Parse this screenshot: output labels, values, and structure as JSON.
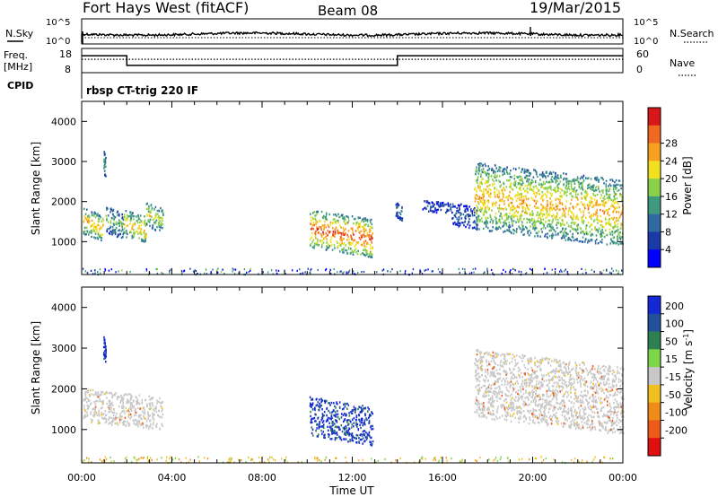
{
  "header": {
    "title": "Fort Hays West (fitACF)",
    "beam": "Beam 08",
    "date": "19/Mar/2015"
  },
  "summary_panel": {
    "left_label": "N.Sky",
    "right_label": "N.Search",
    "left_ticks": [
      "10^5",
      "10^0"
    ],
    "right_ticks": [
      "10^5",
      "10^0"
    ]
  },
  "freq_panel": {
    "left_label_line1": "Freq.",
    "left_label_line2": "[MHz]",
    "right_label": "Nave",
    "left_ticks": [
      "18",
      "8"
    ],
    "right_ticks": [
      "60",
      "0"
    ],
    "freq_steps": [
      {
        "t0": 0.0,
        "t1": 2.0,
        "value": 15
      },
      {
        "t0": 2.0,
        "t1": 14.0,
        "value": 11
      },
      {
        "t0": 14.0,
        "t1": 24.0,
        "value": 15
      }
    ],
    "nave_level": 33
  },
  "cpid": {
    "label": "CPID",
    "program": "rbsp CT-trig 220 IF"
  },
  "chart_data": [
    {
      "type": "heatmap",
      "name": "power",
      "ylabel": "Slant Range [km]",
      "xlabel": "Time UT",
      "x_ticks": [
        "00:00",
        "04:00",
        "08:00",
        "12:00",
        "16:00",
        "20:00",
        "00:00"
      ],
      "y_ticks": [
        "1000",
        "2000",
        "3000",
        "4000"
      ],
      "xlim": [
        0,
        24
      ],
      "ylim": [
        180,
        4500
      ],
      "colorbar": {
        "label": "Power [dB]",
        "ticks": [
          "4",
          "8",
          "12",
          "16",
          "20",
          "24",
          "28"
        ],
        "range": [
          0,
          30
        ],
        "colors": [
          "#0000ff",
          "#1a3aa8",
          "#2f6aa0",
          "#3f9a7e",
          "#8ad04a",
          "#f0e020",
          "#f7a020",
          "#ef6a20",
          "#d81818"
        ]
      },
      "regions": [
        {
          "t0": 0.05,
          "t1": 0.95,
          "r0": 1150,
          "r1": 1850,
          "peak": 22
        },
        {
          "t0": 0.95,
          "t1": 1.05,
          "r0": 2700,
          "r1": 3300,
          "peak": 12
        },
        {
          "t0": 1.05,
          "t1": 1.85,
          "r0": 1200,
          "r1": 1900,
          "peak": 14
        },
        {
          "t0": 1.85,
          "t1": 2.85,
          "r0": 1100,
          "r1": 1800,
          "peak": 22
        },
        {
          "t0": 2.85,
          "t1": 3.6,
          "r0": 1350,
          "r1": 2000,
          "peak": 18
        },
        {
          "t0": 10.1,
          "t1": 12.9,
          "r0": 800,
          "r1": 1800,
          "peak": 26
        },
        {
          "t0": 13.9,
          "t1": 14.2,
          "r0": 1600,
          "r1": 2000,
          "peak": 10
        },
        {
          "t0": 15.1,
          "t1": 16.4,
          "r0": 1750,
          "r1": 2050,
          "peak": 8
        },
        {
          "t0": 16.4,
          "t1": 17.5,
          "r0": 1400,
          "r1": 2000,
          "peak": 8
        },
        {
          "t0": 17.4,
          "t1": 24.0,
          "r0": 1200,
          "r1": 2950,
          "peak": 22
        }
      ]
    },
    {
      "type": "heatmap",
      "name": "velocity",
      "ylabel": "Slant Range [km]",
      "xlabel": "Time UT",
      "x_ticks": [
        "00:00",
        "04:00",
        "08:00",
        "12:00",
        "16:00",
        "20:00",
        "00:00"
      ],
      "y_ticks": [
        "1000",
        "2000",
        "3000",
        "4000"
      ],
      "xlim": [
        0,
        24
      ],
      "ylim": [
        180,
        4500
      ],
      "colorbar": {
        "label_main": "Velocity [m s",
        "label_sup": "-1",
        "label_end": "]",
        "ticks": [
          "200",
          "100",
          "50",
          "15",
          "-15",
          "-50",
          "-100",
          "-200"
        ],
        "colors": [
          "#1428d8",
          "#23509a",
          "#2f8050",
          "#7cd64a",
          "#c8c8c8",
          "#f0c020",
          "#f08a18",
          "#ef5a18",
          "#e01010"
        ]
      },
      "regions": [
        {
          "t0": 0.05,
          "t1": 3.6,
          "r0": 1150,
          "r1": 2000,
          "class": "ground"
        },
        {
          "t0": 0.95,
          "t1": 1.05,
          "r0": 2700,
          "r1": 3300,
          "class": "approach"
        },
        {
          "t0": 10.1,
          "t1": 12.9,
          "r0": 800,
          "r1": 1800,
          "class": "approach"
        },
        {
          "t0": 17.4,
          "t1": 24.0,
          "r0": 1200,
          "r1": 2950,
          "class": "ground"
        }
      ]
    }
  ]
}
